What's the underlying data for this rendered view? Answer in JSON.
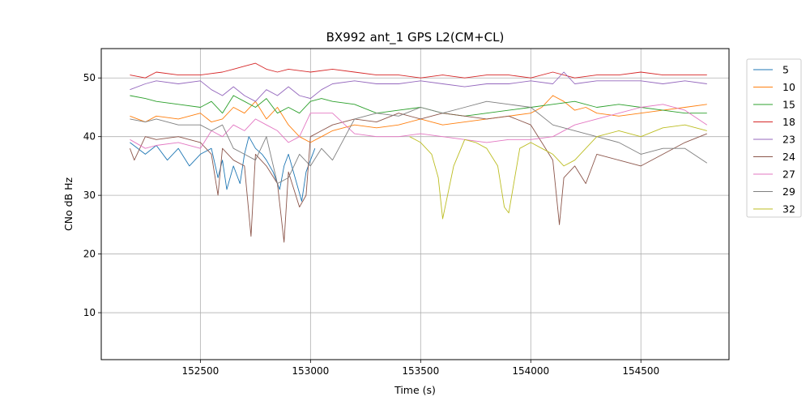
{
  "chart_data": {
    "type": "line",
    "title": "BX992 ant_1 GPS L2(CM+CL)",
    "xlabel": "Time (s)",
    "ylabel": "CNo dB Hz",
    "xlim": [
      152050,
      154900
    ],
    "ylim": [
      2,
      55
    ],
    "xticks": [
      152500,
      153000,
      153500,
      154000,
      154500
    ],
    "yticks": [
      10,
      20,
      30,
      40,
      50
    ],
    "grid": true,
    "legend_position": "outside-right",
    "series": [
      {
        "name": "5",
        "color": "#1f77b4",
        "x": [
          152180,
          152250,
          152300,
          152350,
          152400,
          152450,
          152500,
          152550,
          152580,
          152600,
          152620,
          152650,
          152680,
          152700,
          152720,
          152750,
          152780,
          152800,
          152830,
          152860,
          152880,
          152900,
          152930,
          152960,
          152980,
          153000,
          153020
        ],
        "y": [
          39,
          37,
          38.5,
          36,
          38,
          35,
          37,
          38,
          33,
          36,
          31,
          35,
          32,
          37,
          40,
          38,
          37,
          36,
          34,
          31,
          35,
          37,
          33,
          29,
          34,
          36,
          38
        ]
      },
      {
        "name": "10",
        "color": "#ff7f0e",
        "x": [
          152180,
          152250,
          152300,
          152400,
          152500,
          152550,
          152600,
          152650,
          152700,
          152750,
          152800,
          152850,
          152900,
          152950,
          153000,
          153050,
          153100,
          153200,
          153300,
          153400,
          153500,
          153600,
          153700,
          153800,
          153900,
          154000,
          154050,
          154100,
          154150,
          154200,
          154250,
          154300,
          154400,
          154500,
          154600,
          154700,
          154800
        ],
        "y": [
          43.5,
          42.5,
          43.5,
          43,
          44,
          42.5,
          43,
          45,
          44,
          46,
          43,
          45,
          42,
          40,
          39,
          40,
          41,
          42,
          41.5,
          42,
          43,
          42,
          42.5,
          43,
          43.5,
          44,
          45,
          47,
          46,
          44.5,
          45,
          44,
          43.5,
          44,
          44.5,
          45,
          45.5
        ]
      },
      {
        "name": "15",
        "color": "#2ca02c",
        "x": [
          152180,
          152250,
          152300,
          152400,
          152500,
          152550,
          152600,
          152650,
          152700,
          152750,
          152800,
          152850,
          152900,
          152950,
          153000,
          153050,
          153100,
          153200,
          153300,
          153400,
          153500,
          153600,
          153700,
          153800,
          153900,
          154000,
          154100,
          154200,
          154300,
          154400,
          154500,
          154600,
          154700,
          154800
        ],
        "y": [
          47,
          46.5,
          46,
          45.5,
          45,
          46,
          44,
          47,
          46,
          45,
          46.5,
          44,
          45,
          44,
          46,
          46.5,
          46,
          45.5,
          44,
          44.5,
          45,
          44,
          43.5,
          44,
          44.5,
          45,
          45.5,
          46,
          45,
          45.5,
          45,
          44.5,
          44,
          44
        ]
      },
      {
        "name": "18",
        "color": "#d62728",
        "x": [
          152180,
          152250,
          152300,
          152400,
          152500,
          152600,
          152650,
          152700,
          152750,
          152800,
          152850,
          152900,
          153000,
          153100,
          153200,
          153300,
          153400,
          153500,
          153600,
          153700,
          153800,
          153900,
          154000,
          154100,
          154200,
          154300,
          154400,
          154500,
          154600,
          154700,
          154800
        ],
        "y": [
          50.5,
          50,
          51,
          50.5,
          50.5,
          51,
          51.5,
          52,
          52.5,
          51.5,
          51,
          51.5,
          51,
          51.5,
          51,
          50.5,
          50.5,
          50,
          50.5,
          50,
          50.5,
          50.5,
          50,
          51,
          50,
          50.5,
          50.5,
          51,
          50.5,
          50.5,
          50.5
        ]
      },
      {
        "name": "23",
        "color": "#9467bd",
        "x": [
          152180,
          152250,
          152300,
          152400,
          152500,
          152550,
          152600,
          152650,
          152700,
          152750,
          152800,
          152850,
          152900,
          152950,
          153000,
          153050,
          153100,
          153200,
          153300,
          153400,
          153500,
          153600,
          153700,
          153800,
          153900,
          154000,
          154100,
          154150,
          154200,
          154300,
          154400,
          154500,
          154600,
          154700,
          154800
        ],
        "y": [
          48,
          49,
          49.5,
          49,
          49.5,
          48,
          47,
          48.5,
          47,
          46,
          48,
          47,
          48.5,
          47,
          46.5,
          48,
          49,
          49.5,
          49,
          49,
          49.5,
          49,
          48.5,
          49,
          49,
          49.5,
          49,
          51,
          49,
          49.5,
          49.5,
          49.5,
          49,
          49.5,
          49
        ]
      },
      {
        "name": "24",
        "color": "#8c564b",
        "x": [
          152180,
          152200,
          152250,
          152300,
          152400,
          152500,
          152550,
          152580,
          152600,
          152650,
          152700,
          152730,
          152750,
          152800,
          152850,
          152880,
          152900,
          152950,
          152980,
          153000,
          153050,
          153100,
          153200,
          153300,
          153400,
          153500,
          153600,
          153700,
          153800,
          153900,
          154000,
          154050,
          154100,
          154130,
          154150,
          154200,
          154250,
          154300,
          154400,
          154500,
          154600,
          154700,
          154800
        ],
        "y": [
          38,
          36,
          40,
          39.5,
          40,
          39,
          37,
          30,
          38,
          36,
          35,
          23,
          37,
          35,
          32,
          22,
          34,
          28,
          30,
          40,
          41,
          42,
          43,
          42.5,
          44,
          43,
          44,
          43.5,
          43,
          43.5,
          42,
          39,
          36,
          25,
          33,
          35,
          32,
          37,
          36,
          35,
          37,
          39,
          40.5
        ]
      },
      {
        "name": "27",
        "color": "#e377c2",
        "x": [
          152180,
          152250,
          152300,
          152400,
          152500,
          152550,
          152600,
          152650,
          152700,
          152750,
          152800,
          152850,
          152900,
          152950,
          153000,
          153100,
          153200,
          153300,
          153400,
          153500,
          153600,
          153700,
          153800,
          153900,
          154000,
          154100,
          154200,
          154300,
          154400,
          154500,
          154600,
          154700,
          154800
        ],
        "y": [
          39.5,
          38,
          38.5,
          39,
          38,
          41,
          40,
          42,
          41,
          43,
          42,
          41,
          39,
          40,
          44,
          44,
          40.5,
          40,
          40,
          40.5,
          40,
          39.5,
          39,
          39.5,
          39.5,
          40,
          42,
          43,
          44,
          45,
          45.5,
          44.5,
          42
        ]
      },
      {
        "name": "29",
        "color": "#7f7f7f",
        "x": [
          152180,
          152250,
          152300,
          152400,
          152500,
          152550,
          152600,
          152650,
          152700,
          152750,
          152800,
          152850,
          152900,
          152950,
          153000,
          153050,
          153100,
          153200,
          153300,
          153400,
          153500,
          153600,
          153700,
          153800,
          153900,
          154000,
          154100,
          154200,
          154300,
          154400,
          154500,
          154600,
          154700,
          154800
        ],
        "y": [
          43,
          42.5,
          43,
          42,
          42,
          41,
          42,
          38,
          37,
          36,
          40,
          32,
          33,
          37,
          35,
          38,
          36,
          43,
          44,
          43.5,
          45,
          44,
          45,
          46,
          45.5,
          45,
          42,
          41,
          40,
          39,
          37,
          38,
          38,
          35.5
        ]
      },
      {
        "name": "32",
        "color": "#bcbd22",
        "x": [
          153450,
          153500,
          153550,
          153580,
          153600,
          153650,
          153700,
          153750,
          153800,
          153850,
          153880,
          153900,
          153950,
          154000,
          154050,
          154100,
          154150,
          154200,
          154250,
          154300,
          154400,
          154500,
          154600,
          154700,
          154800
        ],
        "y": [
          40,
          39,
          37,
          33,
          26,
          35,
          39.5,
          39,
          38,
          35,
          28,
          27,
          38,
          39,
          38,
          37,
          35,
          36,
          38,
          40,
          41,
          40,
          41.5,
          42,
          41
        ]
      }
    ]
  }
}
